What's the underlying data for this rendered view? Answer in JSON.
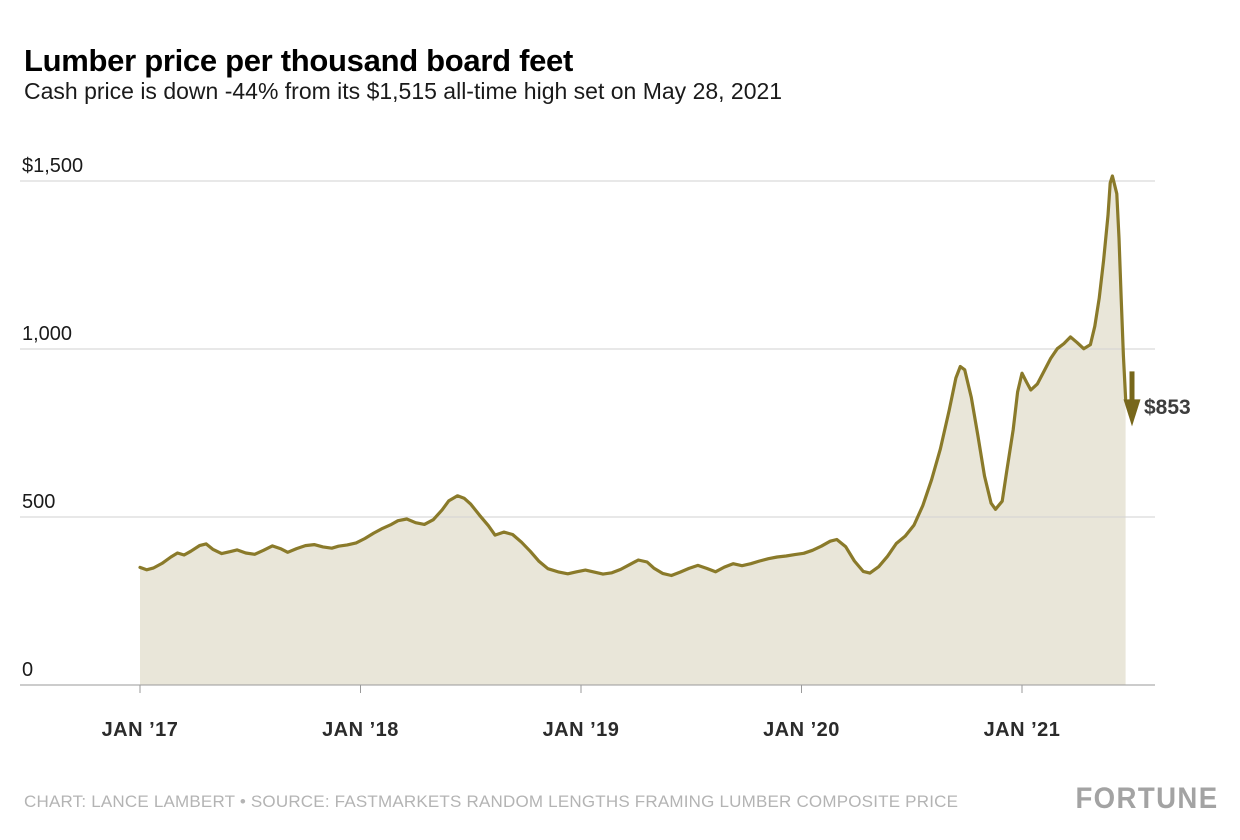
{
  "header": {
    "title": "Lumber price per thousand board feet",
    "subtitle": "Cash price is down -44% from its $1,515 all-time high set on May 28, 2021"
  },
  "chart_data": {
    "type": "area",
    "title": "Lumber price per thousand board feet",
    "xlabel": "",
    "ylabel": "",
    "ylim": [
      0,
      1500
    ],
    "grid": true,
    "yticks": [
      {
        "value": 1500,
        "label": "$1,500"
      },
      {
        "value": 1000,
        "label": "1,000"
      },
      {
        "value": 500,
        "label": "500"
      },
      {
        "value": 0,
        "label": "0"
      }
    ],
    "xticks": [
      {
        "year": 2017,
        "label": "JAN ’17"
      },
      {
        "year": 2018,
        "label": "JAN ’18"
      },
      {
        "year": 2019,
        "label": "JAN ’19"
      },
      {
        "year": 2020,
        "label": "JAN ’20"
      },
      {
        "year": 2021,
        "label": "JAN ’21"
      }
    ],
    "series": [
      {
        "name": "Lumber cash price ($ per thousand board feet)",
        "points": [
          [
            2017.0,
            350
          ],
          [
            2017.03,
            343
          ],
          [
            2017.06,
            348
          ],
          [
            2017.1,
            362
          ],
          [
            2017.14,
            381
          ],
          [
            2017.17,
            393
          ],
          [
            2017.2,
            387
          ],
          [
            2017.23,
            398
          ],
          [
            2017.27,
            415
          ],
          [
            2017.3,
            420
          ],
          [
            2017.33,
            404
          ],
          [
            2017.37,
            391
          ],
          [
            2017.41,
            397
          ],
          [
            2017.44,
            402
          ],
          [
            2017.48,
            393
          ],
          [
            2017.52,
            389
          ],
          [
            2017.56,
            401
          ],
          [
            2017.6,
            414
          ],
          [
            2017.64,
            405
          ],
          [
            2017.67,
            395
          ],
          [
            2017.71,
            406
          ],
          [
            2017.75,
            415
          ],
          [
            2017.79,
            418
          ],
          [
            2017.83,
            411
          ],
          [
            2017.87,
            407
          ],
          [
            2017.9,
            413
          ],
          [
            2017.94,
            417
          ],
          [
            2017.98,
            423
          ],
          [
            2018.02,
            436
          ],
          [
            2018.06,
            452
          ],
          [
            2018.1,
            466
          ],
          [
            2018.14,
            478
          ],
          [
            2018.17,
            489
          ],
          [
            2018.21,
            494
          ],
          [
            2018.25,
            483
          ],
          [
            2018.29,
            478
          ],
          [
            2018.33,
            492
          ],
          [
            2018.37,
            521
          ],
          [
            2018.4,
            548
          ],
          [
            2018.44,
            563
          ],
          [
            2018.47,
            556
          ],
          [
            2018.5,
            538
          ],
          [
            2018.54,
            505
          ],
          [
            2018.58,
            474
          ],
          [
            2018.61,
            446
          ],
          [
            2018.65,
            455
          ],
          [
            2018.69,
            448
          ],
          [
            2018.73,
            425
          ],
          [
            2018.77,
            398
          ],
          [
            2018.81,
            368
          ],
          [
            2018.85,
            346
          ],
          [
            2018.9,
            336
          ],
          [
            2018.94,
            331
          ],
          [
            2018.98,
            337
          ],
          [
            2019.02,
            342
          ],
          [
            2019.06,
            336
          ],
          [
            2019.1,
            330
          ],
          [
            2019.14,
            334
          ],
          [
            2019.18,
            344
          ],
          [
            2019.22,
            358
          ],
          [
            2019.26,
            372
          ],
          [
            2019.3,
            366
          ],
          [
            2019.33,
            348
          ],
          [
            2019.37,
            332
          ],
          [
            2019.41,
            326
          ],
          [
            2019.45,
            336
          ],
          [
            2019.49,
            347
          ],
          [
            2019.53,
            356
          ],
          [
            2019.57,
            347
          ],
          [
            2019.61,
            337
          ],
          [
            2019.65,
            351
          ],
          [
            2019.69,
            361
          ],
          [
            2019.73,
            355
          ],
          [
            2019.77,
            361
          ],
          [
            2019.81,
            369
          ],
          [
            2019.85,
            376
          ],
          [
            2019.89,
            381
          ],
          [
            2019.93,
            384
          ],
          [
            2019.97,
            388
          ],
          [
            2020.01,
            392
          ],
          [
            2020.05,
            401
          ],
          [
            2020.09,
            413
          ],
          [
            2020.13,
            428
          ],
          [
            2020.16,
            433
          ],
          [
            2020.2,
            412
          ],
          [
            2020.24,
            369
          ],
          [
            2020.28,
            338
          ],
          [
            2020.31,
            333
          ],
          [
            2020.35,
            352
          ],
          [
            2020.39,
            383
          ],
          [
            2020.43,
            421
          ],
          [
            2020.47,
            443
          ],
          [
            2020.51,
            476
          ],
          [
            2020.55,
            534
          ],
          [
            2020.59,
            611
          ],
          [
            2020.63,
            703
          ],
          [
            2020.67,
            818
          ],
          [
            2020.7,
            914
          ],
          [
            2020.72,
            948
          ],
          [
            2020.74,
            938
          ],
          [
            2020.77,
            856
          ],
          [
            2020.8,
            742
          ],
          [
            2020.83,
            622
          ],
          [
            2020.86,
            541
          ],
          [
            2020.88,
            523
          ],
          [
            2020.91,
            547
          ],
          [
            2020.93,
            634
          ],
          [
            2020.96,
            760
          ],
          [
            2020.98,
            872
          ],
          [
            2021.0,
            928
          ],
          [
            2021.02,
            902
          ],
          [
            2021.04,
            878
          ],
          [
            2021.07,
            896
          ],
          [
            2021.1,
            934
          ],
          [
            2021.13,
            972
          ],
          [
            2021.16,
            1001
          ],
          [
            2021.19,
            1016
          ],
          [
            2021.22,
            1036
          ],
          [
            2021.25,
            1019
          ],
          [
            2021.28,
            1001
          ],
          [
            2021.31,
            1013
          ],
          [
            2021.33,
            1068
          ],
          [
            2021.35,
            1151
          ],
          [
            2021.37,
            1264
          ],
          [
            2021.39,
            1398
          ],
          [
            2021.4,
            1494
          ],
          [
            2021.41,
            1515
          ],
          [
            2021.43,
            1462
          ],
          [
            2021.44,
            1330
          ],
          [
            2021.45,
            1150
          ],
          [
            2021.46,
            980
          ],
          [
            2021.47,
            853
          ]
        ]
      }
    ],
    "annotation": {
      "label": "$853",
      "value": 853,
      "arrow_direction": "down"
    },
    "colors": {
      "line": "#8a7a2a",
      "fill": "#e9e6d9",
      "arrow": "#77671b",
      "gridline": "#d2d2d2",
      "axis_line": "#9a9a9a",
      "tick_label": "#2b2b2b"
    }
  },
  "footer": {
    "credit": "CHART: LANCE LAMBERT • SOURCE: FASTMARKETS RANDOM LENGTHS FRAMING LUMBER COMPOSITE PRICE",
    "logo": "FORTUNE"
  }
}
